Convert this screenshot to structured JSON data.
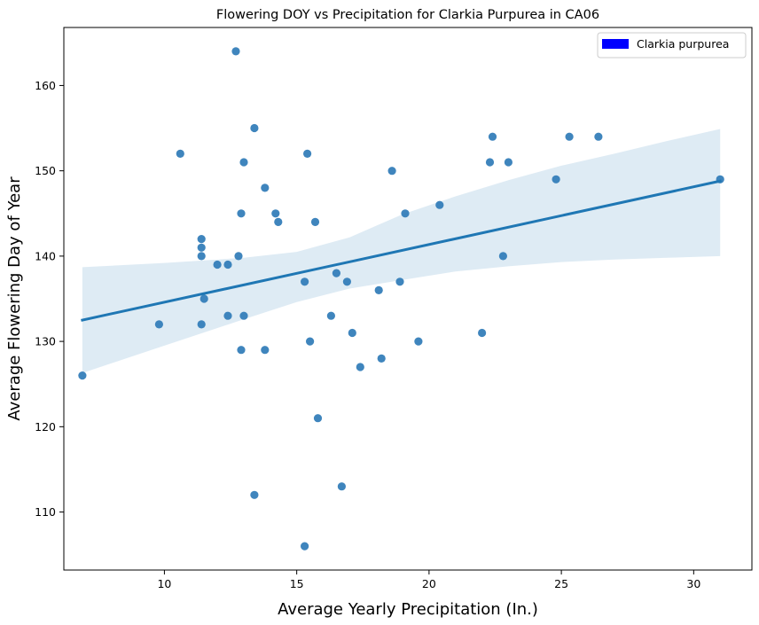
{
  "chart_data": {
    "type": "scatter",
    "title": "Flowering DOY vs Precipitation for Clarkia Purpurea in CA06",
    "xlabel": "Average Yearly Precipitation (In.)",
    "ylabel": "Average Flowering Day of Year",
    "xlim": [
      6.2,
      32.2
    ],
    "ylim": [
      103.2,
      166.8
    ],
    "xticks": [
      10,
      15,
      20,
      25,
      30
    ],
    "yticks": [
      110,
      120,
      130,
      140,
      150,
      160
    ],
    "grid": false,
    "legend": {
      "placement": "top-right",
      "entries": [
        {
          "label": "Clarkia purpurea",
          "color": "#0000ff"
        }
      ]
    },
    "series": [
      {
        "name": "Clarkia purpurea",
        "color": "#2f7bb7",
        "points": [
          [
            6.9,
            126
          ],
          [
            9.8,
            132
          ],
          [
            10.6,
            152
          ],
          [
            11.4,
            142
          ],
          [
            11.4,
            141
          ],
          [
            11.4,
            140
          ],
          [
            11.4,
            132
          ],
          [
            11.5,
            135
          ],
          [
            12.0,
            139
          ],
          [
            12.4,
            139
          ],
          [
            12.4,
            133
          ],
          [
            12.7,
            164
          ],
          [
            12.8,
            140
          ],
          [
            12.9,
            129
          ],
          [
            12.9,
            145
          ],
          [
            13.0,
            151
          ],
          [
            13.0,
            133
          ],
          [
            13.4,
            155
          ],
          [
            13.4,
            112
          ],
          [
            13.8,
            148
          ],
          [
            13.8,
            129
          ],
          [
            14.2,
            145
          ],
          [
            14.3,
            144
          ],
          [
            15.3,
            137
          ],
          [
            15.3,
            106
          ],
          [
            15.4,
            152
          ],
          [
            15.5,
            130
          ],
          [
            15.7,
            144
          ],
          [
            15.8,
            121
          ],
          [
            16.3,
            133
          ],
          [
            16.5,
            138
          ],
          [
            16.7,
            113
          ],
          [
            16.9,
            137
          ],
          [
            17.1,
            131
          ],
          [
            17.4,
            127
          ],
          [
            18.1,
            136
          ],
          [
            18.2,
            128
          ],
          [
            18.6,
            150
          ],
          [
            18.9,
            137
          ],
          [
            19.1,
            145
          ],
          [
            19.6,
            130
          ],
          [
            20.4,
            146
          ],
          [
            22.0,
            131
          ],
          [
            22.3,
            151
          ],
          [
            22.4,
            154
          ],
          [
            22.8,
            140
          ],
          [
            23.0,
            151
          ],
          [
            24.8,
            149
          ],
          [
            25.3,
            154
          ],
          [
            26.4,
            154
          ],
          [
            31.0,
            149
          ]
        ]
      }
    ],
    "regression": {
      "color": "#1f77b4",
      "line": [
        [
          6.9,
          132.5
        ],
        [
          31.0,
          148.8
        ]
      ],
      "ci_band": [
        [
          6.9,
          126.3,
          138.7
        ],
        [
          10,
          129.5,
          139.2
        ],
        [
          13,
          132.6,
          139.8
        ],
        [
          15,
          134.6,
          140.5
        ],
        [
          17,
          136.2,
          142.2
        ],
        [
          19,
          137.2,
          144.9
        ],
        [
          21,
          138.2,
          147.0
        ],
        [
          23,
          138.8,
          148.9
        ],
        [
          25,
          139.3,
          150.6
        ],
        [
          27,
          139.6,
          152.0
        ],
        [
          29,
          139.8,
          153.5
        ],
        [
          31.0,
          140.0,
          154.9
        ]
      ]
    }
  }
}
